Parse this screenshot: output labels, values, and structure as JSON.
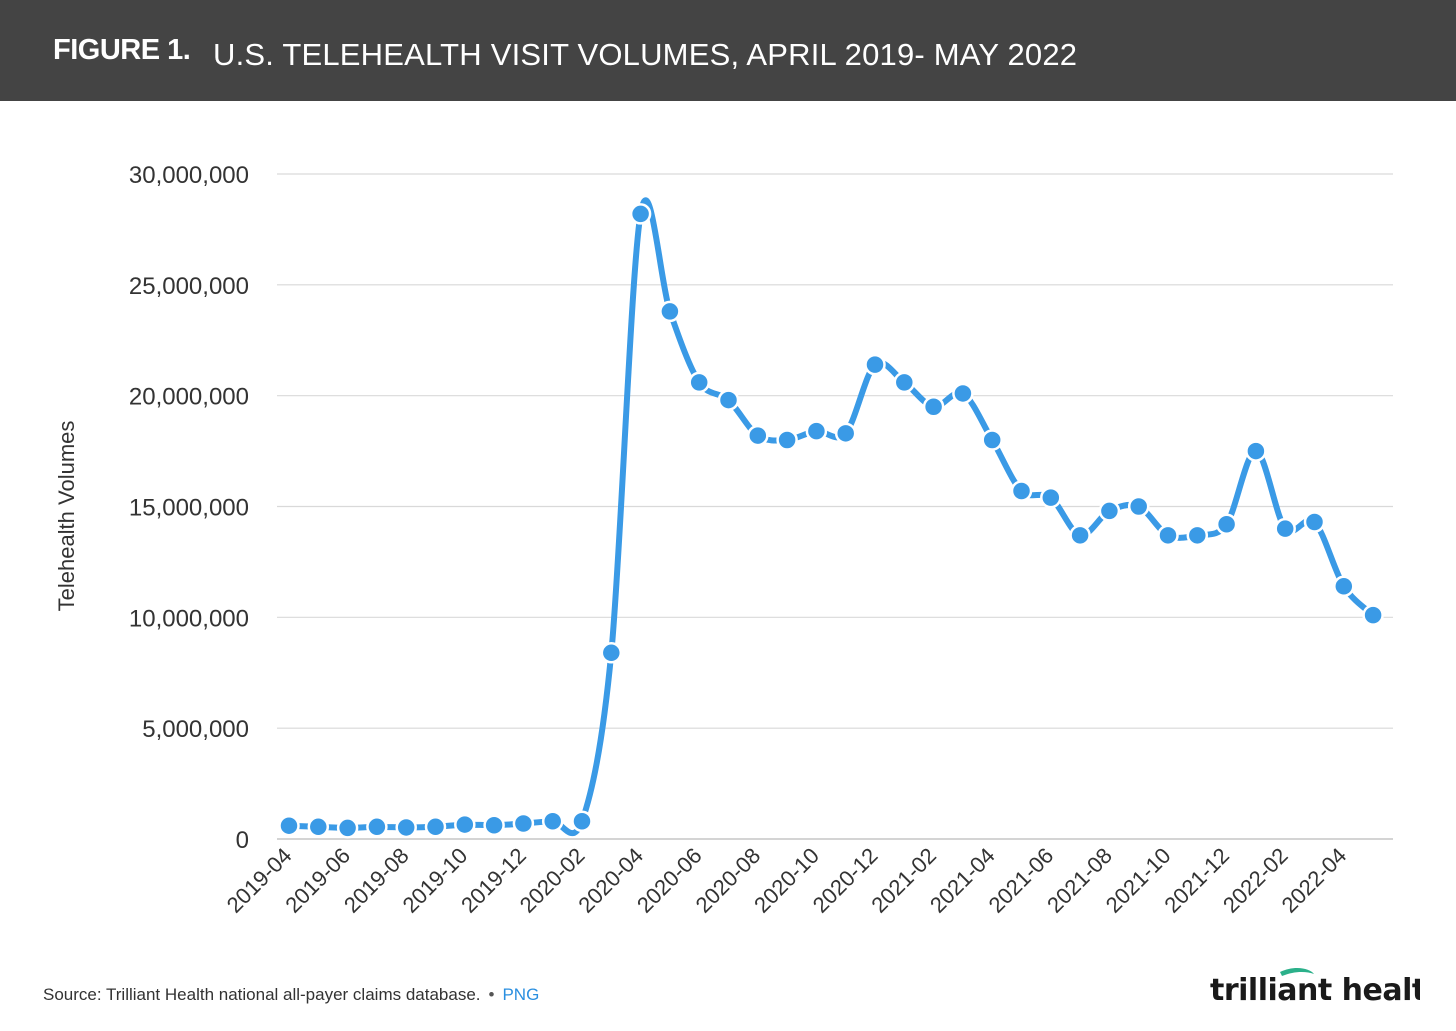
{
  "header": {
    "figure_label": "FIGURE 1.",
    "title": "U.S. TELEHEALTH VISIT VOLUMES, APRIL 2019- MAY 2022"
  },
  "footer": {
    "source": "Source: Trilliant Health national all-payer claims database.",
    "separator": "•",
    "link": "PNG",
    "logo_text": "trilliant health"
  },
  "colors": {
    "header_bg": "#444444",
    "line": "#3a9ae6",
    "link": "#2a8fe0",
    "logo_green": "#2bb08a"
  },
  "chart_data": {
    "type": "line",
    "ylabel": "Telehealth Volumes",
    "xlabel": "",
    "ylim": [
      0,
      30000000
    ],
    "yticks": [
      0,
      5000000,
      10000000,
      15000000,
      20000000,
      25000000,
      30000000
    ],
    "ytick_labels": [
      "0",
      "5,000,000",
      "10,000,000",
      "15,000,000",
      "20,000,000",
      "25,000,000",
      "30,000,000"
    ],
    "xtick_labels": [
      "2019-04",
      "2019-06",
      "2019-08",
      "2019-10",
      "2019-12",
      "2020-02",
      "2020-04",
      "2020-06",
      "2020-08",
      "2020-10",
      "2020-12",
      "2021-02",
      "2021-04",
      "2021-06",
      "2021-08",
      "2021-10",
      "2021-12",
      "2022-02",
      "2022-04"
    ],
    "grid": true,
    "x": [
      "2019-04",
      "2019-05",
      "2019-06",
      "2019-07",
      "2019-08",
      "2019-09",
      "2019-10",
      "2019-11",
      "2019-12",
      "2020-01",
      "2020-02",
      "2020-03",
      "2020-04",
      "2020-05",
      "2020-06",
      "2020-07",
      "2020-08",
      "2020-09",
      "2020-10",
      "2020-11",
      "2020-12",
      "2021-01",
      "2021-02",
      "2021-03",
      "2021-04",
      "2021-05",
      "2021-06",
      "2021-07",
      "2021-08",
      "2021-09",
      "2021-10",
      "2021-11",
      "2021-12",
      "2022-01",
      "2022-02",
      "2022-03",
      "2022-04",
      "2022-05"
    ],
    "series": [
      {
        "values": [
          600000,
          550000,
          500000,
          550000,
          520000,
          550000,
          650000,
          620000,
          700000,
          800000,
          800000,
          8400000,
          28200000,
          23800000,
          20600000,
          19800000,
          18200000,
          18000000,
          18400000,
          18300000,
          21400000,
          20600000,
          19500000,
          20100000,
          18000000,
          15700000,
          15400000,
          13700000,
          14800000,
          15000000,
          13700000,
          13700000,
          14200000,
          17500000,
          14000000,
          14300000,
          11400000,
          10100000
        ]
      }
    ]
  }
}
